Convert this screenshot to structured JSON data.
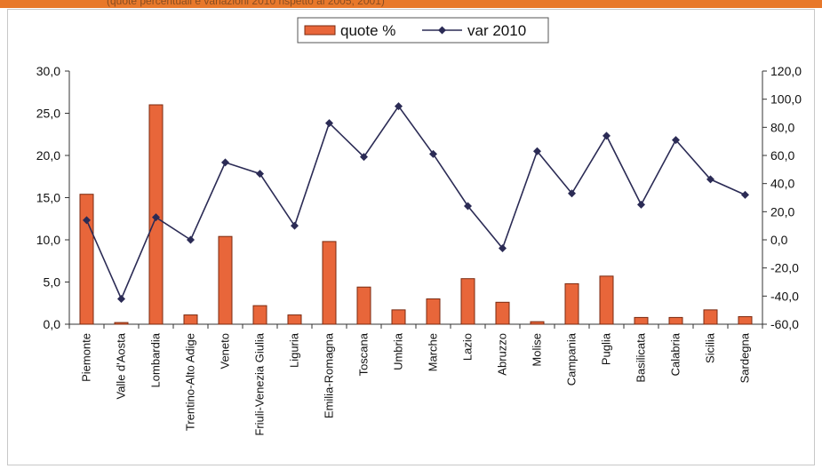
{
  "header_text": "(quote percentuali e variazioni 2010 rispetto al 2005, 2001)",
  "chart_data": {
    "type": "bar",
    "categories": [
      "Piemonte",
      "Valle d'Aosta",
      "Lombardia",
      "Trentino-Alto Adige",
      "Veneto",
      "Friuli-Venezia Giulia",
      "Liguria",
      "Emilia-Romagna",
      "Toscana",
      "Umbria",
      "Marche",
      "Lazio",
      "Abruzzo",
      "Molise",
      "Campania",
      "Puglia",
      "Basilicata",
      "Calabria",
      "Sicilia",
      "Sardegna"
    ],
    "series": [
      {
        "name": "quote %",
        "type": "bar",
        "axis": "left",
        "color": "#e8663a",
        "values": [
          15.4,
          0.2,
          26.0,
          1.1,
          10.4,
          2.2,
          1.1,
          9.8,
          4.4,
          1.7,
          3.0,
          5.4,
          2.6,
          0.3,
          4.8,
          5.7,
          0.8,
          0.8,
          1.7,
          0.9
        ]
      },
      {
        "name": "var 2010",
        "type": "line",
        "axis": "right",
        "color": "#2b2b55",
        "values": [
          14,
          -42,
          16,
          0,
          55,
          47,
          10,
          83,
          59,
          95,
          61,
          24,
          -6,
          63,
          33,
          74,
          25,
          71,
          43,
          32
        ]
      }
    ],
    "y_left": {
      "min": 0,
      "max": 30,
      "ticks": [
        0,
        5,
        10,
        15,
        20,
        25,
        30
      ],
      "tick_labels": [
        "0,0",
        "5,0",
        "10,0",
        "15,0",
        "20,0",
        "25,0",
        "30,0"
      ]
    },
    "y_right": {
      "min": -60,
      "max": 120,
      "ticks": [
        -60,
        -40,
        -20,
        0,
        20,
        40,
        60,
        80,
        100,
        120
      ],
      "tick_labels": [
        "-60,0",
        "-40,0",
        "-20,0",
        "0,0",
        "20,0",
        "40,0",
        "60,0",
        "80,0",
        "100,0",
        "120,0"
      ]
    },
    "title": "",
    "xlabel": "",
    "ylabel": "",
    "grid": false,
    "legend_position": "top-center"
  }
}
